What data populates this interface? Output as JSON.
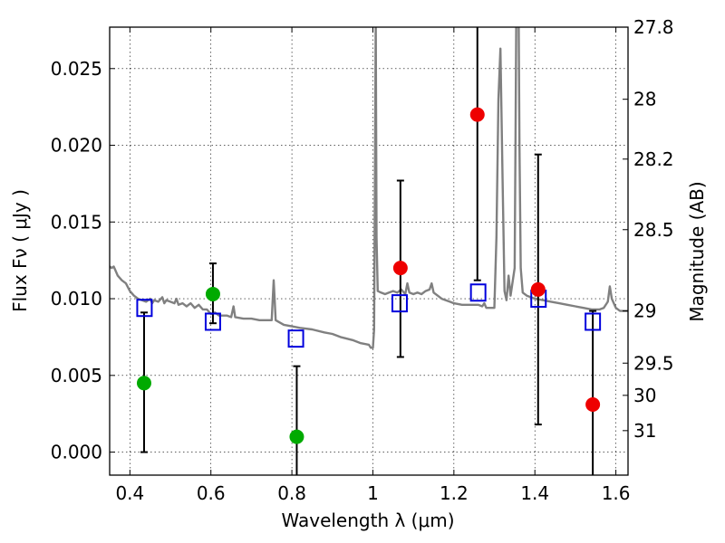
{
  "chart_data": {
    "type": "scatter",
    "xlabel": "Wavelength  λ (μm)",
    "ylabel": "Flux  Fν  ( μJy )",
    "ylabel_right": "Magnitude (AB)",
    "xlim": [
      0.35,
      1.63
    ],
    "ylim": [
      -0.0015,
      0.0277
    ],
    "x_ticks": [
      0.4,
      0.6,
      0.8,
      1.0,
      1.2,
      1.4,
      1.6
    ],
    "x_tick_labels": [
      "0.4",
      "0.6",
      "0.8",
      "1",
      "1.2",
      "1.4",
      "1.6"
    ],
    "y_ticks": [
      0.0,
      0.005,
      0.01,
      0.015,
      0.02,
      0.025
    ],
    "y_tick_labels": [
      "0.000",
      "0.005",
      "0.010",
      "0.015",
      "0.020",
      "0.025"
    ],
    "right_ticks": [
      {
        "label": "27.8",
        "flux": 0.0277
      },
      {
        "label": "28",
        "flux": 0.023
      },
      {
        "label": "28.2",
        "flux": 0.0191
      },
      {
        "label": "28.5",
        "flux": 0.0145
      },
      {
        "label": "29",
        "flux": 0.0092
      },
      {
        "label": "29.5",
        "flux": 0.0058
      },
      {
        "label": "30",
        "flux": 0.0037
      },
      {
        "label": "31",
        "flux": 0.0014
      }
    ],
    "grid": true,
    "colors": {
      "model": "#808080",
      "green": "#00aa00",
      "red": "#ee0000",
      "square": "#0000dd",
      "errorbar": "#000000"
    },
    "model_spectrum": [
      [
        0.35,
        0.0121
      ],
      [
        0.355,
        0.012
      ],
      [
        0.36,
        0.0121
      ],
      [
        0.365,
        0.0118
      ],
      [
        0.37,
        0.0115
      ],
      [
        0.38,
        0.0112
      ],
      [
        0.39,
        0.011
      ],
      [
        0.4,
        0.0105
      ],
      [
        0.41,
        0.0102
      ],
      [
        0.42,
        0.01
      ],
      [
        0.43,
        0.0099
      ],
      [
        0.44,
        0.0098
      ],
      [
        0.45,
        0.01
      ],
      [
        0.455,
        0.0097
      ],
      [
        0.46,
        0.0099
      ],
      [
        0.47,
        0.0098
      ],
      [
        0.48,
        0.0101
      ],
      [
        0.485,
        0.0097
      ],
      [
        0.49,
        0.0099
      ],
      [
        0.5,
        0.0098
      ],
      [
        0.51,
        0.0097
      ],
      [
        0.515,
        0.01
      ],
      [
        0.52,
        0.0096
      ],
      [
        0.53,
        0.0097
      ],
      [
        0.54,
        0.0095
      ],
      [
        0.55,
        0.0097
      ],
      [
        0.56,
        0.0094
      ],
      [
        0.57,
        0.0096
      ],
      [
        0.58,
        0.0093
      ],
      [
        0.59,
        0.0093
      ],
      [
        0.6,
        0.009
      ],
      [
        0.61,
        0.0091
      ],
      [
        0.62,
        0.0089
      ],
      [
        0.64,
        0.0089
      ],
      [
        0.65,
        0.0088
      ],
      [
        0.656,
        0.0095
      ],
      [
        0.66,
        0.0088
      ],
      [
        0.68,
        0.0087
      ],
      [
        0.7,
        0.0087
      ],
      [
        0.72,
        0.0086
      ],
      [
        0.74,
        0.0086
      ],
      [
        0.75,
        0.0086
      ],
      [
        0.755,
        0.0112
      ],
      [
        0.76,
        0.0086
      ],
      [
        0.78,
        0.0083
      ],
      [
        0.8,
        0.0082
      ],
      [
        0.82,
        0.0081
      ],
      [
        0.85,
        0.008
      ],
      [
        0.88,
        0.0078
      ],
      [
        0.9,
        0.0077
      ],
      [
        0.92,
        0.0075
      ],
      [
        0.95,
        0.0073
      ],
      [
        0.97,
        0.0071
      ],
      [
        0.99,
        0.007
      ],
      [
        0.995,
        0.0068
      ],
      [
        1.0,
        0.0068
      ],
      [
        1.003,
        0.008
      ],
      [
        1.005,
        0.017
      ],
      [
        1.007,
        0.0285
      ],
      [
        1.009,
        0.014
      ],
      [
        1.012,
        0.0105
      ],
      [
        1.02,
        0.0104
      ],
      [
        1.03,
        0.0103
      ],
      [
        1.04,
        0.0104
      ],
      [
        1.05,
        0.0105
      ],
      [
        1.06,
        0.0104
      ],
      [
        1.07,
        0.0106
      ],
      [
        1.08,
        0.0103
      ],
      [
        1.085,
        0.011
      ],
      [
        1.09,
        0.0104
      ],
      [
        1.1,
        0.0103
      ],
      [
        1.11,
        0.0104
      ],
      [
        1.12,
        0.0103
      ],
      [
        1.13,
        0.0105
      ],
      [
        1.14,
        0.0106
      ],
      [
        1.145,
        0.011
      ],
      [
        1.15,
        0.0104
      ],
      [
        1.16,
        0.0102
      ],
      [
        1.17,
        0.01
      ],
      [
        1.18,
        0.0099
      ],
      [
        1.19,
        0.0098
      ],
      [
        1.2,
        0.0097
      ],
      [
        1.22,
        0.0096
      ],
      [
        1.24,
        0.0096
      ],
      [
        1.25,
        0.0096
      ],
      [
        1.26,
        0.0096
      ],
      [
        1.27,
        0.0095
      ],
      [
        1.275,
        0.0097
      ],
      [
        1.28,
        0.0094
      ],
      [
        1.29,
        0.0094
      ],
      [
        1.3,
        0.0094
      ],
      [
        1.305,
        0.014
      ],
      [
        1.31,
        0.023
      ],
      [
        1.315,
        0.0263
      ],
      [
        1.32,
        0.018
      ],
      [
        1.325,
        0.0105
      ],
      [
        1.33,
        0.0099
      ],
      [
        1.335,
        0.0115
      ],
      [
        1.34,
        0.0102
      ],
      [
        1.35,
        0.012
      ],
      [
        1.352,
        0.02
      ],
      [
        1.354,
        0.0285
      ],
      [
        1.36,
        0.0285
      ],
      [
        1.362,
        0.02
      ],
      [
        1.365,
        0.012
      ],
      [
        1.37,
        0.0104
      ],
      [
        1.38,
        0.0102
      ],
      [
        1.39,
        0.0101
      ],
      [
        1.4,
        0.01
      ],
      [
        1.42,
        0.0099
      ],
      [
        1.44,
        0.0098
      ],
      [
        1.46,
        0.0097
      ],
      [
        1.48,
        0.0096
      ],
      [
        1.5,
        0.0095
      ],
      [
        1.52,
        0.0094
      ],
      [
        1.54,
        0.0093
      ],
      [
        1.56,
        0.0093
      ],
      [
        1.57,
        0.0094
      ],
      [
        1.58,
        0.0098
      ],
      [
        1.585,
        0.0108
      ],
      [
        1.59,
        0.01
      ],
      [
        1.6,
        0.0094
      ],
      [
        1.61,
        0.0092
      ],
      [
        1.62,
        0.0092
      ],
      [
        1.63,
        0.0092
      ]
    ],
    "model_photometry": [
      {
        "x": 0.436,
        "y": 0.0094
      },
      {
        "x": 0.605,
        "y": 0.0085
      },
      {
        "x": 0.81,
        "y": 0.0074
      },
      {
        "x": 1.066,
        "y": 0.0097
      },
      {
        "x": 1.26,
        "y": 0.0104
      },
      {
        "x": 1.409,
        "y": 0.01
      },
      {
        "x": 1.543,
        "y": 0.0085
      }
    ],
    "observed_detections": [
      {
        "x": 0.435,
        "y": 0.0045,
        "yerr_low": 0.0045,
        "yerr_high": 0.0046,
        "color": "green"
      },
      {
        "x": 0.605,
        "y": 0.0103,
        "yerr_low": 0.0019,
        "yerr_high": 0.002,
        "color": "green"
      },
      {
        "x": 0.812,
        "y": 0.001,
        "yerr_low": 0.003,
        "yerr_high": 0.0046,
        "color": "green"
      },
      {
        "x": 1.068,
        "y": 0.012,
        "yerr_low": 0.0058,
        "yerr_high": 0.0057,
        "color": "red"
      },
      {
        "x": 1.258,
        "y": 0.022,
        "yerr_low": 0.0108,
        "yerr_high": 0.007,
        "color": "red"
      },
      {
        "x": 1.408,
        "y": 0.0106,
        "yerr_low": 0.0088,
        "yerr_high": 0.0088,
        "color": "red"
      },
      {
        "x": 1.543,
        "y": 0.0031,
        "yerr_low": 0.005,
        "yerr_high": 0.0061,
        "color": "red"
      }
    ]
  }
}
